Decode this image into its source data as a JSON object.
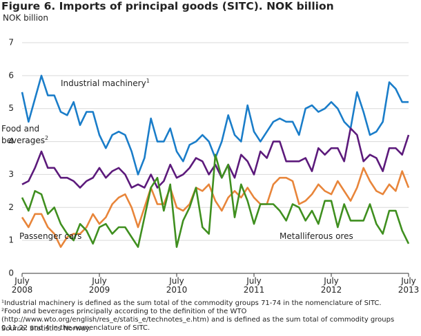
{
  "chart_data": {
    "type": "line",
    "title": "Figure 6. Imports of principal goods (SITC). NOK billion",
    "y_label": "NOK billion",
    "categories": [
      "July 2008",
      null,
      null,
      null,
      null,
      null,
      null,
      null,
      null,
      null,
      null,
      null,
      "July 2009",
      null,
      null,
      null,
      null,
      null,
      null,
      null,
      null,
      null,
      null,
      null,
      "July 2010",
      null,
      null,
      null,
      null,
      null,
      null,
      null,
      null,
      null,
      null,
      null,
      "July 2011",
      null,
      null,
      null,
      null,
      null,
      null,
      null,
      null,
      null,
      null,
      null,
      "July 2012",
      null,
      null,
      null,
      null,
      null,
      null,
      null,
      null,
      null,
      null,
      null,
      "July 2013"
    ],
    "ylim": [
      0,
      7
    ],
    "yticks": [
      0,
      1,
      2,
      3,
      4,
      5,
      6,
      7
    ],
    "grid": true,
    "series": [
      {
        "name": "Industrial machinery",
        "note": "1",
        "color": "#1a7dc9",
        "values": [
          5.5,
          4.6,
          5.3,
          6.0,
          5.4,
          5.4,
          4.9,
          4.8,
          5.2,
          4.5,
          4.9,
          4.9,
          4.2,
          3.8,
          4.2,
          4.3,
          4.2,
          3.7,
          3.0,
          3.5,
          4.7,
          4.0,
          4.0,
          4.4,
          3.7,
          3.4,
          3.9,
          4.0,
          4.2,
          4.0,
          3.5,
          4.0,
          4.8,
          4.2,
          4.0,
          5.1,
          4.3,
          4.0,
          4.3,
          4.6,
          4.7,
          4.6,
          4.6,
          4.2,
          5.0,
          5.1,
          4.9,
          5.0,
          5.2,
          5.0,
          4.6,
          4.4,
          5.5,
          4.9,
          4.2,
          4.3,
          4.6,
          5.8,
          5.6,
          5.2,
          5.2
        ]
      },
      {
        "name": "Food and beverages",
        "note": "2",
        "color": "#5c1a7b",
        "values": [
          2.7,
          2.8,
          3.2,
          3.7,
          3.2,
          3.2,
          2.9,
          2.9,
          2.8,
          2.6,
          2.8,
          2.9,
          3.2,
          2.9,
          3.1,
          3.2,
          3.0,
          2.6,
          2.7,
          2.6,
          3.0,
          2.6,
          2.8,
          3.3,
          2.9,
          3.0,
          3.2,
          3.5,
          3.4,
          3.0,
          3.3,
          2.9,
          3.3,
          2.9,
          3.6,
          3.4,
          3.0,
          3.7,
          3.5,
          4.0,
          4.0,
          3.4,
          3.4,
          3.4,
          3.5,
          3.1,
          3.8,
          3.6,
          3.8,
          3.8,
          3.4,
          4.4,
          4.2,
          3.4,
          3.6,
          3.5,
          3.1,
          3.8,
          3.8,
          3.6,
          4.2
        ]
      },
      {
        "name": "Passenger cars",
        "color": "#e8853a",
        "values": [
          1.7,
          1.4,
          1.8,
          1.8,
          1.4,
          1.2,
          0.8,
          1.1,
          1.2,
          1.2,
          1.4,
          1.8,
          1.5,
          1.7,
          2.1,
          2.3,
          2.4,
          2.0,
          1.4,
          2.0,
          2.6,
          2.1,
          2.1,
          2.6,
          2.0,
          1.9,
          2.1,
          2.6,
          2.5,
          2.7,
          2.2,
          1.9,
          2.3,
          2.5,
          2.3,
          2.6,
          2.3,
          2.1,
          2.1,
          2.7,
          2.9,
          2.9,
          2.8,
          2.1,
          2.2,
          2.4,
          2.7,
          2.5,
          2.4,
          2.8,
          2.5,
          2.2,
          2.6,
          3.2,
          2.8,
          2.5,
          2.4,
          2.7,
          2.5,
          3.1,
          2.6
        ]
      },
      {
        "name": "Metalliferous ores",
        "color": "#3f8f1f",
        "values": [
          2.3,
          1.9,
          2.5,
          2.4,
          1.8,
          2.0,
          1.5,
          1.2,
          1.0,
          1.5,
          1.3,
          0.9,
          1.4,
          1.5,
          1.2,
          1.4,
          1.4,
          1.1,
          0.8,
          1.7,
          2.6,
          2.9,
          1.9,
          2.7,
          0.8,
          1.6,
          2.0,
          2.6,
          1.4,
          1.2,
          3.6,
          2.9,
          3.3,
          1.7,
          2.7,
          2.2,
          1.5,
          2.1,
          2.1,
          2.1,
          1.9,
          1.6,
          2.1,
          2.0,
          1.6,
          1.9,
          1.5,
          2.2,
          2.2,
          1.4,
          2.1,
          1.6,
          1.6,
          1.6,
          2.1,
          1.5,
          1.2,
          1.9,
          1.9,
          1.3,
          0.9
        ]
      }
    ],
    "footnotes": [
      "¹Industrial machinery is defined as the sum total of the commodity groups 71-74 in the nomenclature of SITC.",
      "²Food and beverages principally according to the definition of the WTO (http://www.wto.org/english/res_e/statis_e/technotes_e.htm) and is defined as the sum total of commodity groups 0,11,22 and 4 in the nomenclature of SITC.",
      "Source: Statistics Norway."
    ]
  }
}
